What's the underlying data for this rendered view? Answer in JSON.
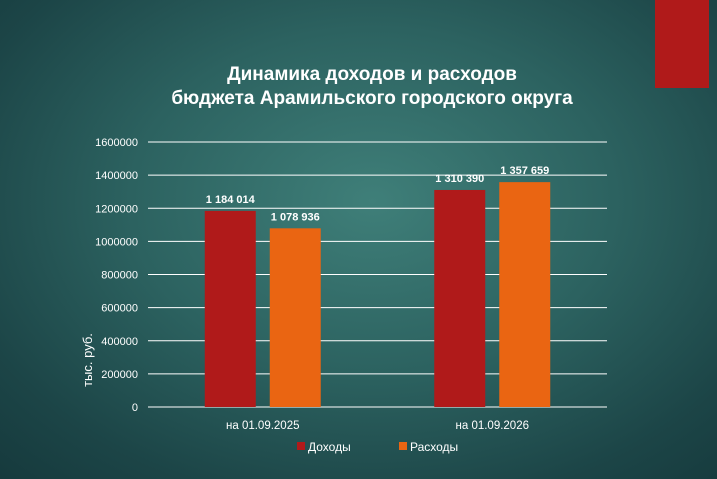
{
  "chart_data": {
    "type": "bar",
    "title_lines": [
      "Динамика доходов и расходов",
      "бюджета Арамильского городского округа"
    ],
    "ylabel": "тыс. руб.",
    "categories": [
      "на 01.09.2025",
      "на 01.09.2026"
    ],
    "ylim": [
      0,
      1600000
    ],
    "yticks": [
      0,
      200000,
      400000,
      600000,
      800000,
      1000000,
      1200000,
      1400000,
      1600000
    ],
    "grid": true,
    "legend_position": "bottom",
    "series": [
      {
        "name": "Доходы",
        "color": "#b01a1a",
        "values": [
          1184014,
          1310390
        ],
        "labels": [
          "1 184 014",
          "1 310 390"
        ]
      },
      {
        "name": "Расходы",
        "color": "#ea6512",
        "values": [
          1078936,
          1357659
        ],
        "labels": [
          "1 078 936",
          "1 357 659"
        ]
      }
    ]
  },
  "colors": {
    "accent_tab": "#b01a1a",
    "background": "#2c6260"
  }
}
